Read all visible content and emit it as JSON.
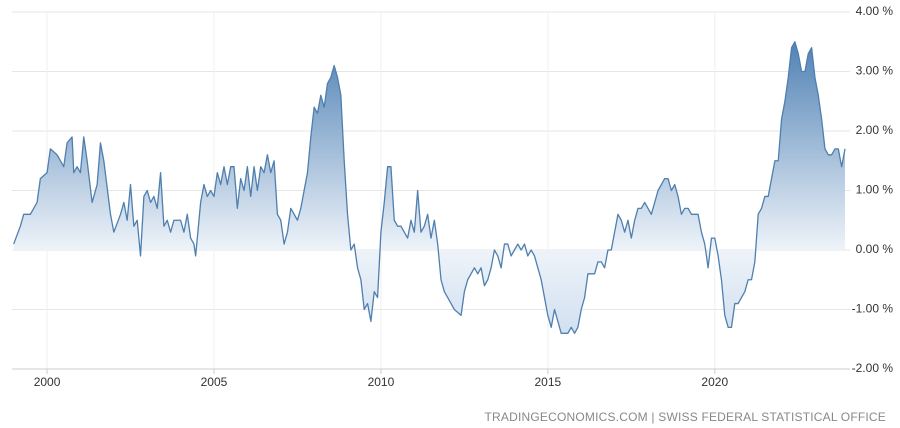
{
  "chart_data": {
    "type": "area",
    "source": "TRADINGECONOMICS.COM | SWISS FEDERAL STATISTICAL OFFICE",
    "color": "#4f7fae",
    "grid": true,
    "xlim": [
      1998.95,
      2024.05
    ],
    "xticks": [
      2000,
      2005,
      2010,
      2015,
      2020
    ],
    "ylim": [
      -2,
      4
    ],
    "yticks": [
      {
        "value": 4,
        "label": "4.00 %"
      },
      {
        "value": 3,
        "label": "3.00 %"
      },
      {
        "value": 2,
        "label": "2.00 %"
      },
      {
        "value": 1,
        "label": "1.00 %"
      },
      {
        "value": 0,
        "label": "0.00 %"
      },
      {
        "value": -1,
        "label": "-1.00 %"
      },
      {
        "value": -2,
        "label": "-2.00 %"
      }
    ],
    "x": [
      1999.0,
      1999.2,
      1999.3,
      1999.5,
      1999.7,
      1999.8,
      2000.0,
      2000.1,
      2000.3,
      2000.5,
      2000.6,
      2000.75,
      2000.8,
      2000.9,
      2001.0,
      2001.1,
      2001.2,
      2001.35,
      2001.5,
      2001.6,
      2001.7,
      2001.9,
      2002.0,
      2002.2,
      2002.3,
      2002.4,
      2002.5,
      2002.6,
      2002.7,
      2002.8,
      2002.9,
      2003.0,
      2003.1,
      2003.2,
      2003.3,
      2003.4,
      2003.5,
      2003.6,
      2003.7,
      2003.8,
      2004.0,
      2004.1,
      2004.2,
      2004.3,
      2004.4,
      2004.45,
      2004.6,
      2004.7,
      2004.8,
      2004.9,
      2005.0,
      2005.1,
      2005.2,
      2005.3,
      2005.4,
      2005.5,
      2005.6,
      2005.7,
      2005.8,
      2005.9,
      2006.0,
      2006.1,
      2006.2,
      2006.3,
      2006.4,
      2006.5,
      2006.6,
      2006.7,
      2006.8,
      2006.9,
      2007.0,
      2007.1,
      2007.2,
      2007.3,
      2007.5,
      2007.6,
      2007.7,
      2007.8,
      2007.9,
      2008.0,
      2008.1,
      2008.2,
      2008.3,
      2008.4,
      2008.5,
      2008.6,
      2008.7,
      2008.8,
      2008.9,
      2009.0,
      2009.1,
      2009.2,
      2009.3,
      2009.4,
      2009.5,
      2009.6,
      2009.7,
      2009.8,
      2009.9,
      2010.0,
      2010.1,
      2010.2,
      2010.3,
      2010.4,
      2010.5,
      2010.6,
      2010.7,
      2010.8,
      2010.9,
      2011.0,
      2011.1,
      2011.2,
      2011.3,
      2011.4,
      2011.5,
      2011.6,
      2011.7,
      2011.8,
      2011.9,
      2012.0,
      2012.1,
      2012.2,
      2012.4,
      2012.5,
      2012.6,
      2012.7,
      2012.8,
      2012.9,
      2013.0,
      2013.1,
      2013.2,
      2013.3,
      2013.4,
      2013.5,
      2013.6,
      2013.7,
      2013.8,
      2013.9,
      2014.0,
      2014.1,
      2014.2,
      2014.3,
      2014.4,
      2014.5,
      2014.6,
      2014.7,
      2014.8,
      2014.9,
      2015.0,
      2015.1,
      2015.2,
      2015.3,
      2015.4,
      2015.5,
      2015.6,
      2015.7,
      2015.8,
      2015.9,
      2016.0,
      2016.1,
      2016.2,
      2016.3,
      2016.4,
      2016.5,
      2016.6,
      2016.7,
      2016.8,
      2016.9,
      2017.0,
      2017.1,
      2017.2,
      2017.3,
      2017.4,
      2017.5,
      2017.6,
      2017.7,
      2017.8,
      2017.9,
      2018.0,
      2018.1,
      2018.2,
      2018.3,
      2018.4,
      2018.5,
      2018.6,
      2018.7,
      2018.8,
      2018.9,
      2019.0,
      2019.1,
      2019.2,
      2019.3,
      2019.4,
      2019.5,
      2019.6,
      2019.7,
      2019.8,
      2019.9,
      2020.0,
      2020.1,
      2020.2,
      2020.3,
      2020.4,
      2020.5,
      2020.6,
      2020.7,
      2020.8,
      2020.9,
      2021.0,
      2021.1,
      2021.2,
      2021.3,
      2021.4,
      2021.5,
      2021.6,
      2021.7,
      2021.8,
      2021.9,
      2022.0,
      2022.1,
      2022.2,
      2022.3,
      2022.4,
      2022.5,
      2022.6,
      2022.7,
      2022.8,
      2022.9,
      2023.0,
      2023.1,
      2023.2,
      2023.3,
      2023.4,
      2023.5,
      2023.6,
      2023.7,
      2023.8,
      2023.9
    ],
    "values": [
      0.1,
      0.4,
      0.6,
      0.6,
      0.8,
      1.2,
      1.3,
      1.7,
      1.6,
      1.4,
      1.8,
      1.9,
      1.3,
      1.4,
      1.3,
      1.9,
      1.5,
      0.8,
      1.1,
      1.8,
      1.5,
      0.6,
      0.3,
      0.6,
      0.8,
      0.5,
      1.1,
      0.4,
      0.5,
      -0.1,
      0.9,
      1.0,
      0.8,
      0.9,
      0.7,
      1.3,
      0.4,
      0.5,
      0.3,
      0.5,
      0.5,
      0.3,
      0.6,
      0.2,
      0.1,
      -0.1,
      0.8,
      1.1,
      0.9,
      1.0,
      0.9,
      1.3,
      1.1,
      1.4,
      1.1,
      1.4,
      1.4,
      0.7,
      1.2,
      1.0,
      1.4,
      0.9,
      1.4,
      1.0,
      1.4,
      1.3,
      1.6,
      1.3,
      1.5,
      0.6,
      0.5,
      0.1,
      0.3,
      0.7,
      0.5,
      0.7,
      1.0,
      1.3,
      1.9,
      2.4,
      2.3,
      2.6,
      2.4,
      2.8,
      2.9,
      3.1,
      2.9,
      2.6,
      1.5,
      0.6,
      0.0,
      0.1,
      -0.3,
      -0.5,
      -1.0,
      -0.9,
      -1.2,
      -0.7,
      -0.8,
      0.3,
      0.8,
      1.4,
      1.4,
      0.5,
      0.4,
      0.4,
      0.3,
      0.2,
      0.5,
      0.3,
      1.0,
      0.3,
      0.4,
      0.6,
      0.2,
      0.5,
      0.1,
      -0.5,
      -0.7,
      -0.8,
      -0.9,
      -1.0,
      -1.1,
      -0.7,
      -0.5,
      -0.4,
      -0.3,
      -0.4,
      -0.3,
      -0.6,
      -0.5,
      -0.3,
      0.0,
      -0.1,
      -0.3,
      0.1,
      0.1,
      -0.1,
      0.0,
      0.1,
      0.0,
      0.1,
      -0.1,
      0.0,
      -0.1,
      -0.3,
      -0.5,
      -0.8,
      -1.1,
      -1.3,
      -1.0,
      -1.2,
      -1.4,
      -1.4,
      -1.4,
      -1.3,
      -1.4,
      -1.3,
      -1.0,
      -0.8,
      -0.4,
      -0.4,
      -0.4,
      -0.2,
      -0.2,
      -0.3,
      0.0,
      0.0,
      0.3,
      0.6,
      0.5,
      0.3,
      0.5,
      0.2,
      0.5,
      0.7,
      0.7,
      0.8,
      0.7,
      0.6,
      0.8,
      1.0,
      1.1,
      1.2,
      1.2,
      1.0,
      1.1,
      0.9,
      0.6,
      0.7,
      0.7,
      0.6,
      0.6,
      0.6,
      0.3,
      0.1,
      -0.3,
      0.2,
      0.2,
      -0.1,
      -0.5,
      -1.1,
      -1.3,
      -1.3,
      -0.9,
      -0.9,
      -0.8,
      -0.7,
      -0.5,
      -0.5,
      -0.2,
      0.6,
      0.7,
      0.9,
      0.9,
      1.2,
      1.5,
      1.5,
      2.2,
      2.5,
      2.9,
      3.4,
      3.5,
      3.3,
      3.0,
      3.0,
      3.3,
      3.4,
      2.9,
      2.6,
      2.2,
      1.7,
      1.6,
      1.6,
      1.7,
      1.7,
      1.4,
      1.7
    ]
  }
}
